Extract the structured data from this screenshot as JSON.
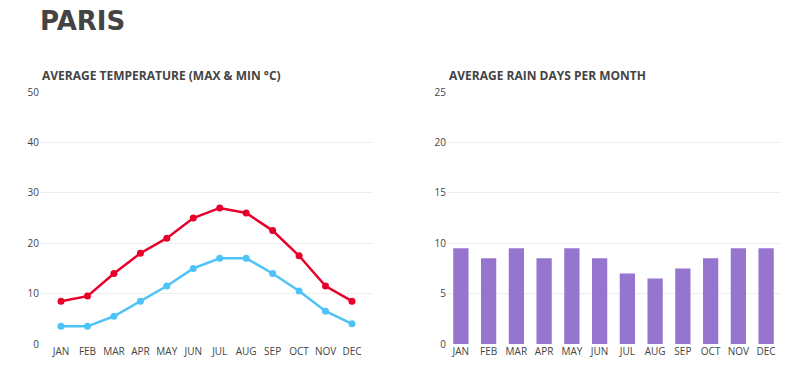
{
  "title": "PARIS",
  "chart_data": [
    {
      "type": "line",
      "title": "AVERAGE TEMPERATURE (MAX & MIN °C)",
      "categories": [
        "JAN",
        "FEB",
        "MAR",
        "APR",
        "MAY",
        "JUN",
        "JUL",
        "AUG",
        "SEP",
        "OCT",
        "NOV",
        "DEC"
      ],
      "series": [
        {
          "color": "#E8002A",
          "marker": "circle",
          "values": [
            8.5,
            9.5,
            14.0,
            18.0,
            21.0,
            25.0,
            27.0,
            26.0,
            22.5,
            17.5,
            11.5,
            8.5
          ]
        },
        {
          "color": "#4DC3F7",
          "marker": "circle",
          "values": [
            3.5,
            3.5,
            5.5,
            8.5,
            11.5,
            15.0,
            17.0,
            17.0,
            14.0,
            10.5,
            6.5,
            4.0
          ]
        }
      ],
      "ylim": [
        0,
        50
      ],
      "yticks": [
        0,
        10,
        20,
        30,
        40,
        50
      ],
      "grid": true
    },
    {
      "type": "bar",
      "title": "AVERAGE RAIN DAYS PER MONTH",
      "categories": [
        "JAN",
        "FEB",
        "MAR",
        "APR",
        "MAY",
        "JUN",
        "JUL",
        "AUG",
        "SEP",
        "OCT",
        "NOV",
        "DEC"
      ],
      "values": [
        9.5,
        8.5,
        9.5,
        8.5,
        9.5,
        8.5,
        7.0,
        6.5,
        7.5,
        8.5,
        9.5,
        9.5
      ],
      "color": "#9575CD",
      "ylim": [
        0,
        25
      ],
      "yticks": [
        0,
        5,
        10,
        15,
        20,
        25
      ],
      "grid": true
    }
  ]
}
